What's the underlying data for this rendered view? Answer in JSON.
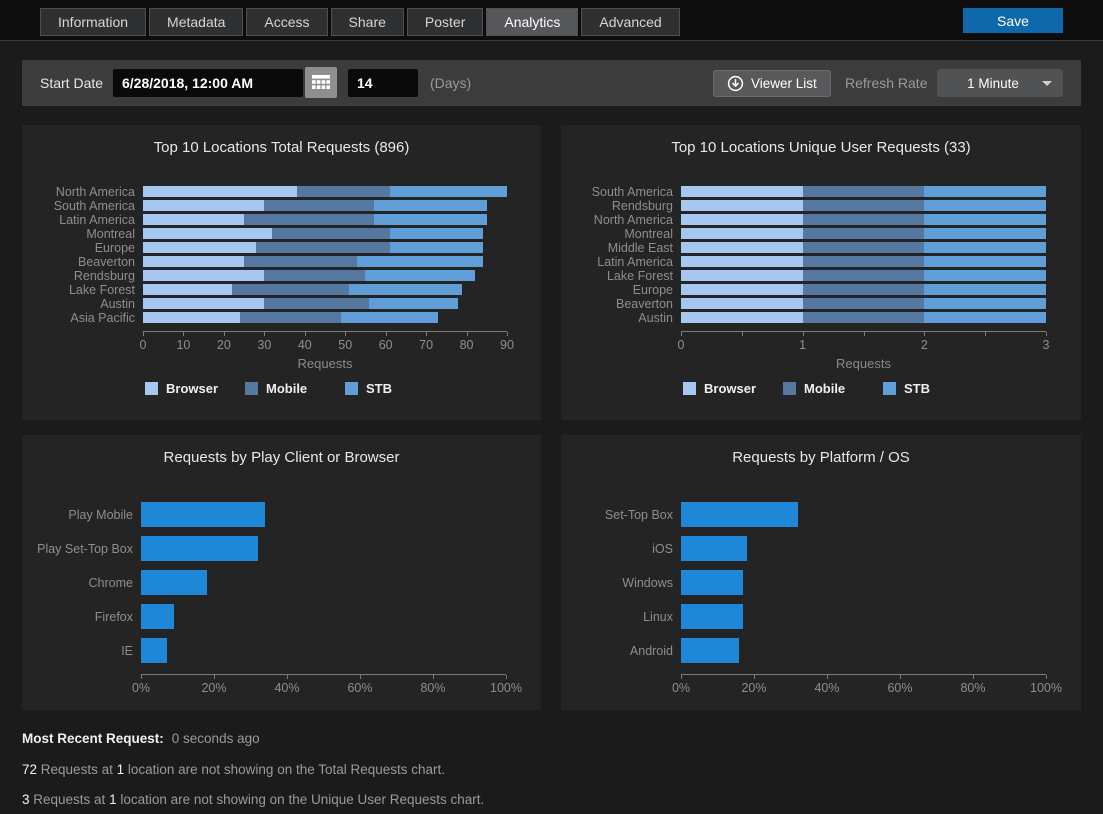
{
  "tabs": {
    "items": [
      {
        "label": "Information",
        "active": false
      },
      {
        "label": "Metadata",
        "active": false
      },
      {
        "label": "Access",
        "active": false
      },
      {
        "label": "Share",
        "active": false
      },
      {
        "label": "Poster",
        "active": false
      },
      {
        "label": "Analytics",
        "active": true
      },
      {
        "label": "Advanced",
        "active": false
      }
    ],
    "save_label": "Save"
  },
  "toolbar": {
    "start_date_label": "Start Date",
    "start_date_value": "6/28/2018, 12:00 AM",
    "days_value": "14",
    "days_label": "(Days)",
    "viewer_list_label": "Viewer List",
    "refresh_rate_label": "Refresh Rate",
    "refresh_rate_value": "1 Minute",
    "icons": {
      "calendar": "calendar-grid-icon",
      "viewer": "circle-down-arrow-icon",
      "dropdown": "caret-down-icon"
    }
  },
  "colors": {
    "browser": "#a6c8f0",
    "mobile": "#54789f",
    "stb": "#5f9ed6",
    "accent_bar": "#1e87d8",
    "save_button": "#0f68aa"
  },
  "chart_data": [
    {
      "type": "bar",
      "orientation": "horizontal",
      "stacked": true,
      "title": "Top 10 Locations Total Requests (896)",
      "categories": [
        "North America",
        "South America",
        "Latin America",
        "Montreal",
        "Europe",
        "Beaverton",
        "Rendsburg",
        "Lake Forest",
        "Austin",
        "Asia Pacific"
      ],
      "series": [
        {
          "name": "Browser",
          "color": "#a6c8f0",
          "values": [
            38,
            30,
            25,
            32,
            28,
            25,
            30,
            22,
            30,
            24
          ]
        },
        {
          "name": "Mobile",
          "color": "#54789f",
          "values": [
            23,
            27,
            32,
            29,
            33,
            28,
            25,
            29,
            26,
            25
          ]
        },
        {
          "name": "STB",
          "color": "#5f9ed6",
          "values": [
            29,
            28,
            28,
            23,
            23,
            31,
            27,
            28,
            22,
            24
          ]
        }
      ],
      "xlabel": "Requests",
      "xlim": [
        0,
        90
      ],
      "xtick_marks": [
        0,
        10,
        20,
        30,
        40,
        50,
        60,
        70,
        80,
        90
      ],
      "xtick_labels": [
        {
          "v": 0,
          "label": "0"
        },
        {
          "v": 10,
          "label": "10"
        },
        {
          "v": 20,
          "label": "20"
        },
        {
          "v": 30,
          "label": "30"
        },
        {
          "v": 40,
          "label": "40"
        },
        {
          "v": 50,
          "label": "50"
        },
        {
          "v": 60,
          "label": "60"
        },
        {
          "v": 70,
          "label": "70"
        },
        {
          "v": 80,
          "label": "80"
        },
        {
          "v": 90,
          "label": "90"
        }
      ],
      "legend_position": "bottom",
      "grid": false
    },
    {
      "type": "bar",
      "orientation": "horizontal",
      "stacked": true,
      "title": "Top 10 Locations Unique User Requests (33)",
      "categories": [
        "South America",
        "Rendsburg",
        "North America",
        "Montreal",
        "Middle East",
        "Latin America",
        "Lake Forest",
        "Europe",
        "Beaverton",
        "Austin"
      ],
      "series": [
        {
          "name": "Browser",
          "color": "#a6c8f0",
          "values": [
            1,
            1,
            1,
            1,
            1,
            1,
            1,
            1,
            1,
            1
          ]
        },
        {
          "name": "Mobile",
          "color": "#54789f",
          "values": [
            1,
            1,
            1,
            1,
            1,
            1,
            1,
            1,
            1,
            1
          ]
        },
        {
          "name": "STB",
          "color": "#5f9ed6",
          "values": [
            1,
            1,
            1,
            1,
            1,
            1,
            1,
            1,
            1,
            1
          ]
        }
      ],
      "xlabel": "Requests",
      "xlim": [
        0,
        3
      ],
      "xtick_marks": [
        0,
        0.5,
        1,
        1.5,
        2,
        2.5,
        3
      ],
      "xtick_labels": [
        {
          "v": 0,
          "label": "0"
        },
        {
          "v": 1,
          "label": "1"
        },
        {
          "v": 2,
          "label": "2"
        },
        {
          "v": 3,
          "label": "3"
        }
      ],
      "legend_position": "bottom",
      "grid": false
    },
    {
      "type": "bar",
      "orientation": "horizontal",
      "stacked": false,
      "title": "Requests by Play Client or Browser",
      "categories": [
        "Play Mobile",
        "Play Set-Top Box",
        "Chrome",
        "Firefox",
        "IE"
      ],
      "values": [
        34,
        32,
        18,
        9,
        7
      ],
      "color": "#1e87d8",
      "xlabel": "",
      "xlim": [
        0,
        100
      ],
      "xtick_marks": [
        0,
        20,
        40,
        60,
        80,
        100
      ],
      "xtick_labels": [
        {
          "v": 0,
          "label": "0%"
        },
        {
          "v": 20,
          "label": "20%"
        },
        {
          "v": 40,
          "label": "40%"
        },
        {
          "v": 60,
          "label": "60%"
        },
        {
          "v": 80,
          "label": "80%"
        },
        {
          "v": 100,
          "label": "100%"
        }
      ],
      "grid": false
    },
    {
      "type": "bar",
      "orientation": "horizontal",
      "stacked": false,
      "title": "Requests by Platform / OS",
      "categories": [
        "Set-Top Box",
        "iOS",
        "Windows",
        "Linux",
        "Android"
      ],
      "values": [
        32,
        18,
        17,
        17,
        16
      ],
      "color": "#1e87d8",
      "xlabel": "",
      "xlim": [
        0,
        100
      ],
      "xtick_marks": [
        0,
        20,
        40,
        60,
        80,
        100
      ],
      "xtick_labels": [
        {
          "v": 0,
          "label": "0%"
        },
        {
          "v": 20,
          "label": "20%"
        },
        {
          "v": 40,
          "label": "40%"
        },
        {
          "v": 60,
          "label": "60%"
        },
        {
          "v": 80,
          "label": "80%"
        },
        {
          "v": 100,
          "label": "100%"
        }
      ],
      "grid": false
    }
  ],
  "footer": {
    "most_recent_label": "Most Recent Request:",
    "most_recent_value": "0 seconds ago",
    "note_total": {
      "count": "72",
      "text1": " Requests at ",
      "location_count": "1",
      "text2": " location are not showing on the Total Requests chart."
    },
    "note_unique": {
      "count": "3",
      "text1": " Requests at ",
      "location_count": "1",
      "text2": " location are not showing on the Unique User Requests chart."
    }
  }
}
